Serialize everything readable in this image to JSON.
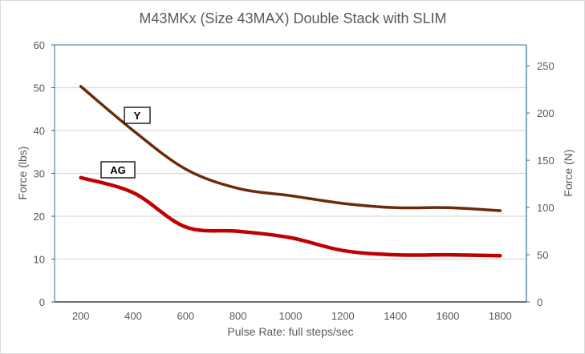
{
  "chart_data": {
    "type": "line",
    "title": "M43MKx (Size 43MAX) Double Stack with SLIM",
    "xlabel": "Pulse Rate:  full steps/sec",
    "ylabel": "Force (lbs)",
    "y2label": "Force (N)",
    "x": [
      200,
      400,
      600,
      800,
      1000,
      1200,
      1400,
      1600,
      1800
    ],
    "xlim": [
      100,
      1900
    ],
    "ylim": [
      0,
      60
    ],
    "y2lim": [
      0,
      272.2
    ],
    "xticks": [
      "200",
      "400",
      "600",
      "800",
      "1000",
      "1200",
      "1400",
      "1600",
      "1800"
    ],
    "yticks": [
      "0",
      "10",
      "20",
      "30",
      "40",
      "50",
      "60"
    ],
    "y2ticks": [
      "0",
      "50",
      "100",
      "150",
      "200",
      "250"
    ],
    "grid": true,
    "series": [
      {
        "name": "Y",
        "color": "#6b2a0a",
        "values": [
          50.3,
          40.0,
          31.0,
          26.5,
          24.8,
          23.0,
          22.0,
          22.0,
          21.3
        ]
      },
      {
        "name": "AG",
        "color": "#c00000",
        "values": [
          29.0,
          25.5,
          17.5,
          16.5,
          15.0,
          12.0,
          11.0,
          11.0,
          10.8
        ]
      }
    ],
    "axis_colors": {
      "left": "#595959",
      "right": "#31738f",
      "bottom": "#404040"
    }
  }
}
